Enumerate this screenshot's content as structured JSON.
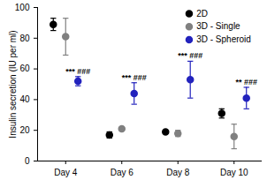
{
  "chart_data": {
    "type": "scatter",
    "categories": [
      "Day 4",
      "Day 6",
      "Day 8",
      "Day 10"
    ],
    "ylabel": "Insulin secretion (IU per ml)",
    "ylim": [
      0,
      100
    ],
    "yticks": [
      0,
      20,
      40,
      60,
      80,
      100
    ],
    "legend": "upper right",
    "marker": "circle",
    "series": [
      {
        "name": "2D",
        "color": "#000000",
        "values": [
          89,
          17,
          19,
          31
        ],
        "errors": [
          4,
          2,
          1,
          3
        ]
      },
      {
        "name": "3D - Single",
        "color": "#808080",
        "values": [
          81,
          21,
          18,
          16
        ],
        "errors": [
          12,
          1,
          2,
          8
        ]
      },
      {
        "name": "3D - Spheroid",
        "color": "#2323bd",
        "values": [
          52,
          44,
          53,
          41
        ],
        "errors": [
          3,
          7,
          12,
          7
        ],
        "annotations": [
          "*** ###",
          "*** ###",
          "*** ###",
          "** ###"
        ]
      }
    ]
  }
}
